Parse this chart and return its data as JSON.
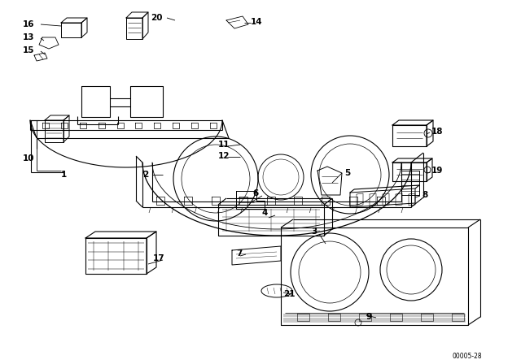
{
  "background_color": "#ffffff",
  "line_color": "#000000",
  "text_color": "#000000",
  "diagram_code": "00005-28",
  "fig_width": 6.4,
  "fig_height": 4.48,
  "dpi": 100
}
